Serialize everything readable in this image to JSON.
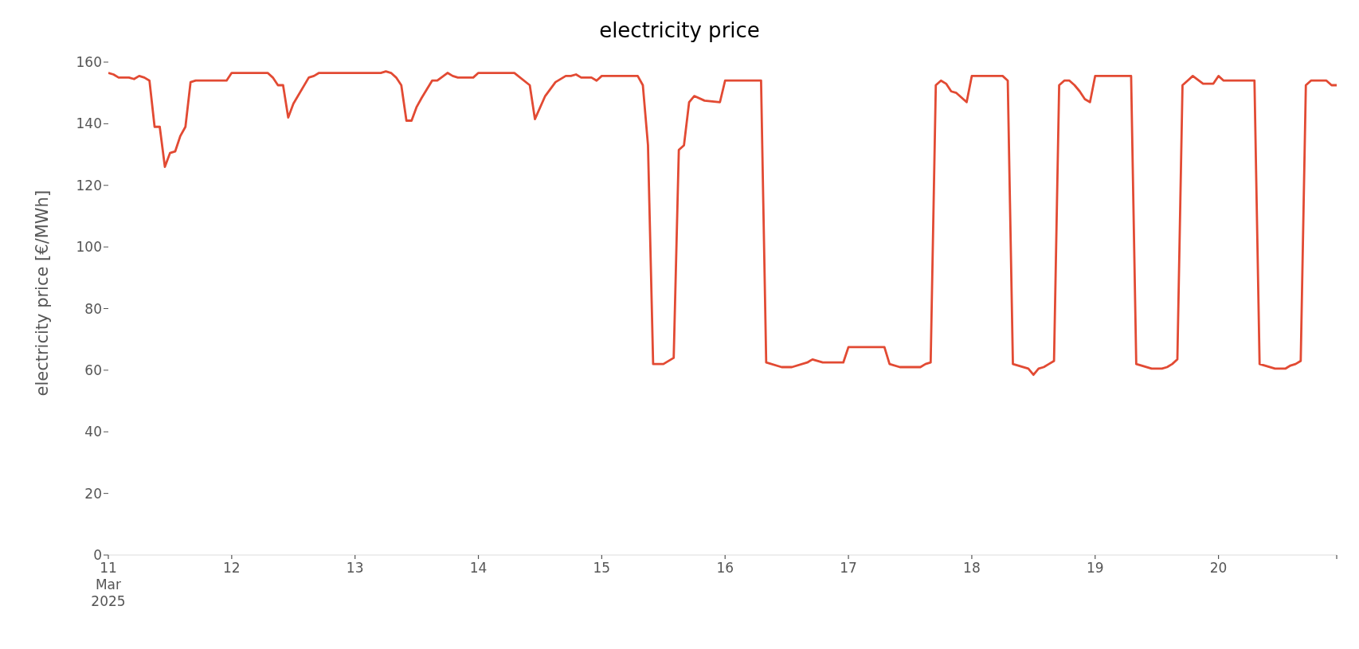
{
  "chart_data": {
    "type": "line",
    "title": "electricity price",
    "ylabel": "electricity price [€/MWh]",
    "x": [
      "2025-03-11T00:00",
      "2025-03-11T01:00",
      "2025-03-11T02:00",
      "2025-03-11T04:00",
      "2025-03-11T05:00",
      "2025-03-11T06:00",
      "2025-03-11T07:00",
      "2025-03-11T08:00",
      "2025-03-11T09:00",
      "2025-03-11T10:00",
      "2025-03-11T11:00",
      "2025-03-11T12:00",
      "2025-03-11T13:00",
      "2025-03-11T14:00",
      "2025-03-11T15:00",
      "2025-03-11T16:00",
      "2025-03-11T17:00",
      "2025-03-11T23:00",
      "2025-03-12T00:00",
      "2025-03-12T07:00",
      "2025-03-12T08:00",
      "2025-03-12T09:00",
      "2025-03-12T10:00",
      "2025-03-12T11:00",
      "2025-03-12T12:00",
      "2025-03-12T15:00",
      "2025-03-12T16:00",
      "2025-03-12T17:00",
      "2025-03-13T05:00",
      "2025-03-13T06:00",
      "2025-03-13T07:00",
      "2025-03-13T08:00",
      "2025-03-13T09:00",
      "2025-03-13T10:00",
      "2025-03-13T11:00",
      "2025-03-13T12:00",
      "2025-03-13T13:00",
      "2025-03-13T15:00",
      "2025-03-13T16:00",
      "2025-03-13T18:00",
      "2025-03-13T19:00",
      "2025-03-13T20:00",
      "2025-03-13T23:00",
      "2025-03-14T00:00",
      "2025-03-14T07:00",
      "2025-03-14T10:00",
      "2025-03-14T11:00",
      "2025-03-14T13:00",
      "2025-03-14T15:00",
      "2025-03-14T17:00",
      "2025-03-14T18:00",
      "2025-03-14T19:00",
      "2025-03-14T20:00",
      "2025-03-14T22:00",
      "2025-03-14T23:00",
      "2025-03-15T00:00",
      "2025-03-15T07:00",
      "2025-03-15T08:00",
      "2025-03-15T09:00",
      "2025-03-15T10:00",
      "2025-03-15T12:00",
      "2025-03-15T14:00",
      "2025-03-15T15:00",
      "2025-03-15T16:00",
      "2025-03-15T17:00",
      "2025-03-15T18:00",
      "2025-03-15T20:00",
      "2025-03-15T23:00",
      "2025-03-16T00:00",
      "2025-03-16T07:00",
      "2025-03-16T08:00",
      "2025-03-16T11:00",
      "2025-03-16T13:00",
      "2025-03-16T16:00",
      "2025-03-16T17:00",
      "2025-03-16T19:00",
      "2025-03-16T20:00",
      "2025-03-16T23:00",
      "2025-03-17T00:00",
      "2025-03-17T07:00",
      "2025-03-17T08:00",
      "2025-03-17T10:00",
      "2025-03-17T14:00",
      "2025-03-17T15:00",
      "2025-03-17T16:00",
      "2025-03-17T17:00",
      "2025-03-17T18:00",
      "2025-03-17T19:00",
      "2025-03-17T20:00",
      "2025-03-17T21:00",
      "2025-03-17T23:00",
      "2025-03-18T00:00",
      "2025-03-18T06:00",
      "2025-03-18T07:00",
      "2025-03-18T08:00",
      "2025-03-18T11:00",
      "2025-03-18T12:00",
      "2025-03-18T13:00",
      "2025-03-18T14:00",
      "2025-03-18T15:00",
      "2025-03-18T16:00",
      "2025-03-18T17:00",
      "2025-03-18T18:00",
      "2025-03-18T19:00",
      "2025-03-18T20:00",
      "2025-03-18T21:00",
      "2025-03-18T22:00",
      "2025-03-18T23:00",
      "2025-03-19T00:00",
      "2025-03-19T07:00",
      "2025-03-19T08:00",
      "2025-03-19T11:00",
      "2025-03-19T13:00",
      "2025-03-19T14:00",
      "2025-03-19T15:00",
      "2025-03-19T16:00",
      "2025-03-19T17:00",
      "2025-03-19T18:00",
      "2025-03-19T19:00",
      "2025-03-19T21:00",
      "2025-03-19T23:00",
      "2025-03-20T00:00",
      "2025-03-20T01:00",
      "2025-03-20T07:00",
      "2025-03-20T08:00",
      "2025-03-20T11:00",
      "2025-03-20T13:00",
      "2025-03-20T14:00",
      "2025-03-20T15:00",
      "2025-03-20T16:00",
      "2025-03-20T17:00",
      "2025-03-20T18:00",
      "2025-03-20T21:00",
      "2025-03-20T22:00",
      "2025-03-20T23:00"
    ],
    "series": [
      {
        "color": "#e24a33",
        "values": [
          156.5,
          156,
          155,
          155,
          154.5,
          155.5,
          155,
          154,
          139,
          139,
          126,
          130.5,
          131,
          136,
          139,
          153.5,
          154,
          154,
          156.5,
          156.5,
          155,
          152.5,
          152.5,
          142,
          146.5,
          155,
          155.5,
          156.5,
          156.5,
          157,
          156.5,
          155,
          152.5,
          141,
          141,
          145.5,
          148.5,
          154,
          154,
          156.5,
          155.5,
          155,
          155,
          156.5,
          156.5,
          152.5,
          141.5,
          149,
          153.5,
          155.5,
          155.5,
          156,
          155,
          155,
          154,
          155.5,
          155.5,
          152.5,
          133,
          62,
          62,
          64,
          131.5,
          133,
          147,
          149,
          147.5,
          147,
          154,
          154,
          62.5,
          61,
          61,
          62.5,
          63.5,
          62.5,
          62.5,
          62.5,
          67.5,
          67.5,
          62,
          61,
          61,
          62,
          62.5,
          152.5,
          154,
          153,
          150.5,
          150,
          147,
          155.5,
          155.5,
          154,
          62,
          60.5,
          58.5,
          60.5,
          61,
          62,
          63,
          152.5,
          154,
          154,
          152.5,
          150.5,
          148,
          147,
          155.5,
          155.5,
          62,
          60.5,
          60.5,
          61,
          62,
          63.5,
          152.5,
          154,
          155.5,
          153,
          153,
          155.5,
          154,
          154,
          62,
          60.5,
          60.5,
          61.5,
          62,
          63,
          152.5,
          154,
          154,
          152.5,
          152.5
        ]
      }
    ],
    "xlim": [
      "2025-03-11T00:00",
      "2025-03-20T23:00"
    ],
    "xticks": [
      {
        "value": "2025-03-11",
        "label": "11\nMar\n2025"
      },
      {
        "value": "2025-03-12",
        "label": "12"
      },
      {
        "value": "2025-03-13",
        "label": "13"
      },
      {
        "value": "2025-03-14",
        "label": "14"
      },
      {
        "value": "2025-03-15",
        "label": "15"
      },
      {
        "value": "2025-03-16",
        "label": "16"
      },
      {
        "value": "2025-03-17",
        "label": "17"
      },
      {
        "value": "2025-03-18",
        "label": "18"
      },
      {
        "value": "2025-03-19",
        "label": "19"
      },
      {
        "value": "2025-03-20",
        "label": "20"
      },
      {
        "value": "2025-03-20T23:00",
        "label": null
      }
    ],
    "ylim": [
      0,
      160
    ],
    "yticks": [
      0,
      20,
      40,
      60,
      80,
      100,
      120,
      140,
      160
    ],
    "line_style": "solid",
    "legend": false
  }
}
